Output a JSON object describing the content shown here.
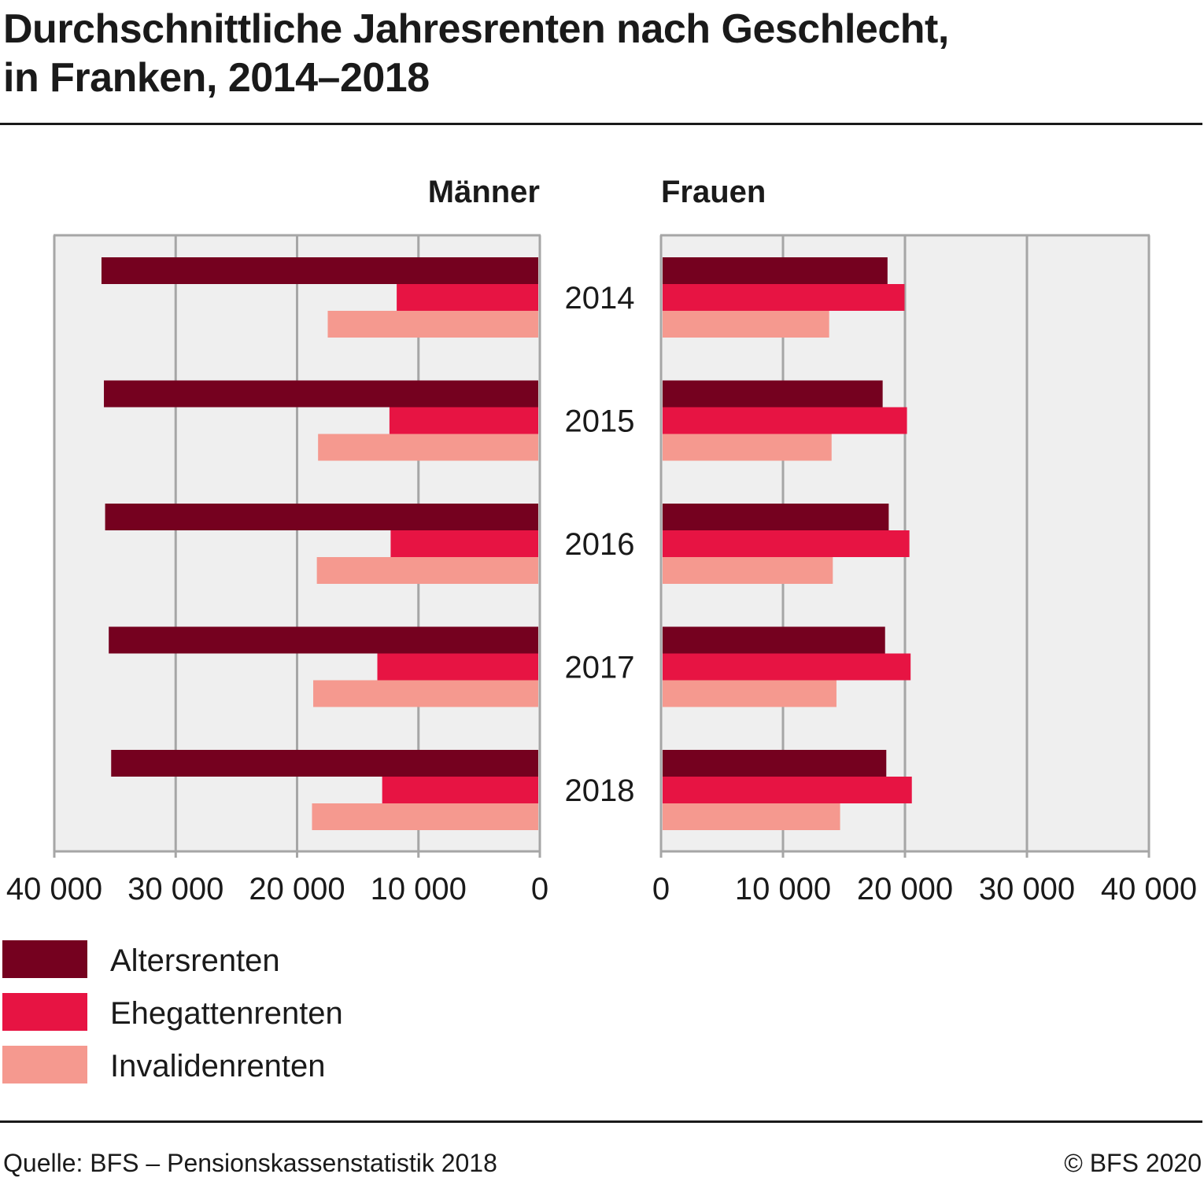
{
  "title": {
    "line1": "Durchschnittliche Jahresrenten nach Geschlecht,",
    "line2": "in Franken, 2014–2018"
  },
  "colors": {
    "altersrenten": "#75011f",
    "ehegattenrenten": "#e71443",
    "invalidenrenten": "#f5998f",
    "plot_background": "#efefef",
    "grid": "#a6a6a6"
  },
  "chart_data": {
    "type": "bar",
    "orientation": "horizontal",
    "layout": "back-to-back",
    "categories": [
      "2014",
      "2015",
      "2016",
      "2017",
      "2018"
    ],
    "xlim": [
      0,
      40000
    ],
    "xticks": [
      0,
      10000,
      20000,
      30000,
      40000
    ],
    "xtick_labels": [
      "0",
      "10 000",
      "20 000",
      "30 000",
      "40 000"
    ],
    "grid": true,
    "legend_position": "bottom-left",
    "panels": [
      {
        "label": "Männer",
        "direction": "left",
        "series": [
          {
            "name": "Altersrenten",
            "values": [
              36100,
              35900,
              35800,
              35500,
              35300
            ]
          },
          {
            "name": "Ehegattenrenten",
            "values": [
              11700,
              12300,
              12200,
              13300,
              12900
            ]
          },
          {
            "name": "Invalidenrenten",
            "values": [
              17400,
              18200,
              18300,
              18600,
              18700
            ]
          }
        ]
      },
      {
        "label": "Frauen",
        "direction": "right",
        "series": [
          {
            "name": "Altersrenten",
            "values": [
              18500,
              18100,
              18600,
              18300,
              18400
            ]
          },
          {
            "name": "Ehegattenrenten",
            "values": [
              19900,
              20100,
              20300,
              20400,
              20500
            ]
          },
          {
            "name": "Invalidenrenten",
            "values": [
              13700,
              13900,
              14000,
              14300,
              14600
            ]
          }
        ]
      }
    ]
  },
  "legend": [
    {
      "label": "Altersrenten"
    },
    {
      "label": "Ehegattenrenten"
    },
    {
      "label": "Invalidenrenten"
    }
  ],
  "footer": {
    "source": "Quelle: BFS – Pensionskassenstatistik 2018",
    "copyright": "© BFS 2020"
  }
}
